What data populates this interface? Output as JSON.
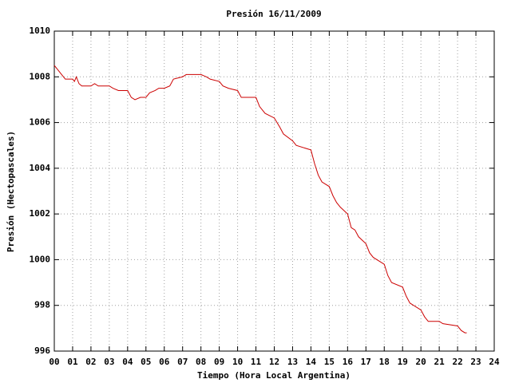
{
  "chart_data": {
    "type": "line",
    "title": "Presión 16/11/2009",
    "x_label": "Tiempo (Hora Local Argentina)",
    "y_label": "Presión (Hectopascales)",
    "xlim": [
      0,
      24
    ],
    "ylim": [
      996,
      1010
    ],
    "grid": true,
    "xticks": [
      {
        "value": 0,
        "label": "00"
      },
      {
        "value": 1,
        "label": "01"
      },
      {
        "value": 2,
        "label": "02"
      },
      {
        "value": 3,
        "label": "03"
      },
      {
        "value": 4,
        "label": "04"
      },
      {
        "value": 5,
        "label": "05"
      },
      {
        "value": 6,
        "label": "06"
      },
      {
        "value": 7,
        "label": "07"
      },
      {
        "value": 8,
        "label": "08"
      },
      {
        "value": 9,
        "label": "09"
      },
      10,
      11,
      12,
      13,
      14,
      15,
      16,
      17,
      18,
      19,
      20,
      21,
      22,
      23,
      24
    ],
    "yticks": [
      996,
      998,
      1000,
      1002,
      1004,
      1006,
      1008,
      1010
    ],
    "x": [
      0,
      0.2,
      0.4,
      0.6,
      1.0,
      1.1,
      1.2,
      1.35,
      1.5,
      2.0,
      2.2,
      2.4,
      3.0,
      3.2,
      3.5,
      4.0,
      4.2,
      4.4,
      4.7,
      5.0,
      5.2,
      5.5,
      5.7,
      6.0,
      6.3,
      6.5,
      7.0,
      7.2,
      8.0,
      8.3,
      8.5,
      9.0,
      9.2,
      9.5,
      10.0,
      10.2,
      11.0,
      11.2,
      11.5,
      12.0,
      12.3,
      12.5,
      13.0,
      13.2,
      14.0,
      14.2,
      14.4,
      14.6,
      15.0,
      15.2,
      15.4,
      15.6,
      16.0,
      16.2,
      16.4,
      16.6,
      17.0,
      17.2,
      17.4,
      18.0,
      18.2,
      18.4,
      19.0,
      19.2,
      19.4,
      20.0,
      20.2,
      20.4,
      21.0,
      21.2,
      22.0,
      22.2,
      22.4,
      22.5
    ],
    "series": [
      {
        "color": "#cc0000",
        "values": [
          1008.5,
          1008.3,
          1008.1,
          1007.9,
          1007.9,
          1007.8,
          1008.0,
          1007.7,
          1007.6,
          1007.6,
          1007.7,
          1007.6,
          1007.6,
          1007.5,
          1007.4,
          1007.4,
          1007.1,
          1007.0,
          1007.1,
          1007.1,
          1007.3,
          1007.4,
          1007.5,
          1007.5,
          1007.6,
          1007.9,
          1008.0,
          1008.1,
          1008.1,
          1008.0,
          1007.9,
          1007.8,
          1007.6,
          1007.5,
          1007.4,
          1007.1,
          1007.1,
          1006.7,
          1006.4,
          1006.2,
          1005.8,
          1005.5,
          1005.2,
          1005.0,
          1004.8,
          1004.2,
          1003.7,
          1003.4,
          1003.2,
          1002.8,
          1002.5,
          1002.3,
          1002.0,
          1001.4,
          1001.3,
          1001.0,
          1000.7,
          1000.3,
          1000.1,
          999.8,
          999.3,
          999.0,
          998.8,
          998.4,
          998.1,
          997.8,
          997.5,
          997.3,
          997.3,
          997.2,
          997.1,
          996.9,
          996.8,
          996.8
        ]
      }
    ]
  }
}
